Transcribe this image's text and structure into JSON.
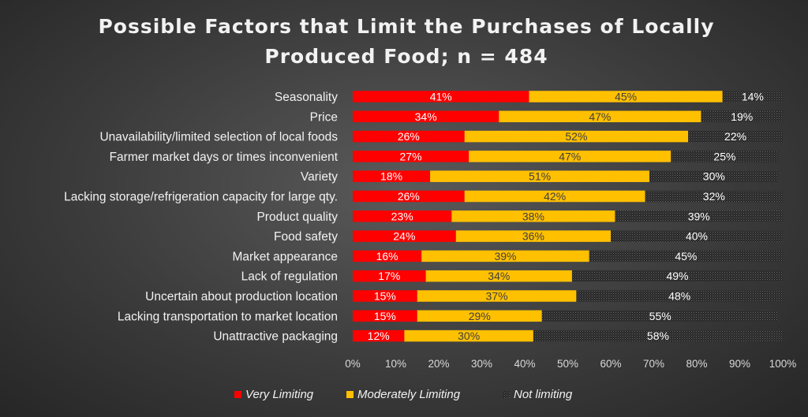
{
  "chart_data": {
    "type": "bar",
    "orientation": "horizontal",
    "stacked": true,
    "title": "Possible Factors that Limit the Purchases of Locally Produced Food; n = 484",
    "title_lines": [
      "Possible Factors that Limit the Purchases of Locally",
      "Produced Food; n = 484"
    ],
    "categories": [
      "Seasonality",
      "Price",
      "Unavailability/limited selection of local foods",
      "Farmer market days or times inconvenient",
      "Variety ",
      "Lacking storage/refrigeration capacity for large qty.",
      "Product quality ",
      "Food safety",
      "Market appearance ",
      "Lack of regulation",
      "Uncertain about production location",
      "Lacking transportation to market location",
      "Unattractive packaging"
    ],
    "series": [
      {
        "name": "Very Limiting",
        "color": "#ff0000",
        "label_color": "#ffffff",
        "values": [
          41,
          34,
          26,
          27,
          18,
          26,
          23,
          24,
          16,
          17,
          15,
          15,
          12
        ]
      },
      {
        "name": "Moderately Limiting",
        "color": "#ffc000",
        "label_color": "#404040",
        "values": [
          45,
          47,
          52,
          47,
          51,
          42,
          38,
          36,
          39,
          34,
          37,
          29,
          30
        ]
      },
      {
        "name": "Not limiting",
        "color": "#2b2b2b",
        "pattern": "dotted",
        "label_color": "#ffffff",
        "values": [
          14,
          19,
          22,
          25,
          30,
          32,
          39,
          40,
          45,
          49,
          48,
          55,
          58
        ]
      }
    ],
    "xlim": [
      0,
      100
    ],
    "x_ticks": [
      "0%",
      "10%",
      "20%",
      "30%",
      "40%",
      "50%",
      "60%",
      "70%",
      "80%",
      "90%",
      "100%"
    ],
    "value_suffix": "%",
    "legend_position": "bottom",
    "grid": false,
    "background": "#404040"
  }
}
